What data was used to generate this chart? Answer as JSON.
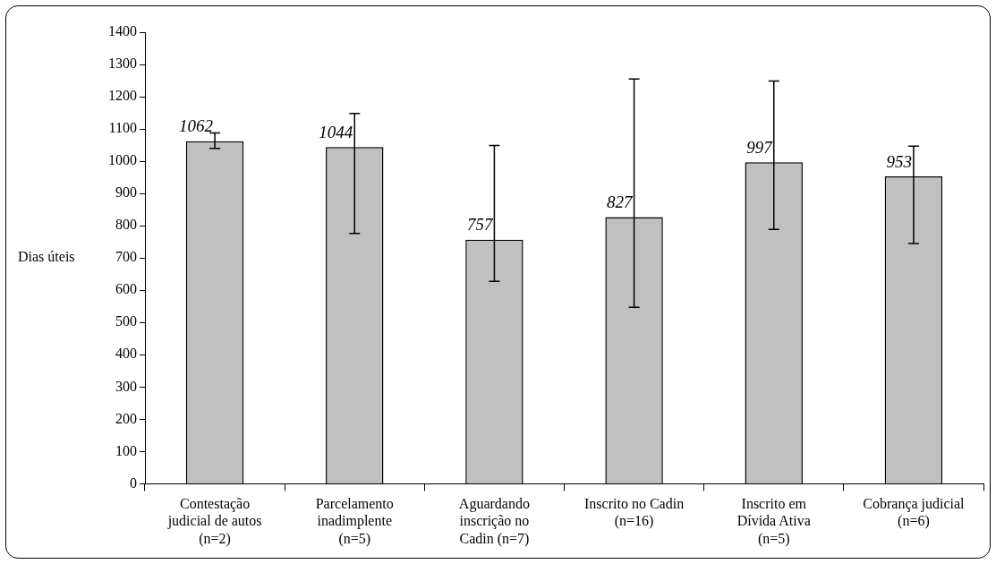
{
  "chart_data": {
    "type": "bar",
    "ylabel": "Dias úteis",
    "categories": [
      "Contestação judicial de autos (n=2)",
      "Parcelamento inadimplente (n=5)",
      "Aguardando inscrição no Cadin (n=7)",
      "Inscrito no Cadin (n=16)",
      "Inscrito em Dívida Ativa (n=5)",
      "Cobrança judicial (n=6)"
    ],
    "values": [
      1062,
      1044,
      757,
      827,
      997,
      953
    ],
    "errors": [
      [
        1040,
        1088
      ],
      [
        776,
        1148
      ],
      [
        628,
        1049
      ],
      [
        547,
        1255
      ],
      [
        789,
        1249
      ],
      [
        745,
        1047
      ]
    ],
    "color": "#c0c0c0",
    "data_labels": true,
    "ylim": [
      0,
      1400
    ],
    "yticks": [
      0,
      100,
      200,
      300,
      400,
      500,
      600,
      700,
      800,
      900,
      1000,
      1100,
      1200,
      1300,
      1400
    ],
    "grid": false,
    "legend": false
  }
}
